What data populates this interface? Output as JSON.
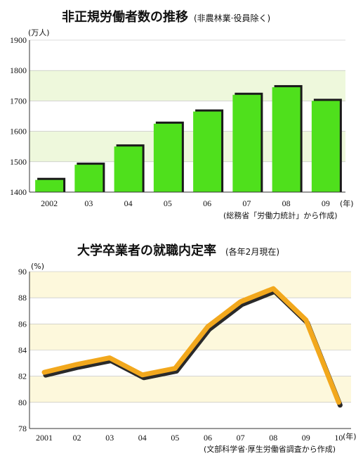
{
  "chart_data": [
    {
      "type": "bar",
      "title": "非正規労働者数の推移",
      "subtitle": "(非農林業·役員除く)",
      "unit": "(万人)",
      "categories": [
        "2002",
        "03",
        "04",
        "05",
        "06",
        "07",
        "08",
        "09"
      ],
      "x_unit": "(年)",
      "values": [
        1440,
        1490,
        1550,
        1625,
        1665,
        1720,
        1745,
        1700
      ],
      "ylim": [
        1400,
        1900
      ],
      "yticks": [
        1400,
        1500,
        1600,
        1700,
        1800,
        1900
      ],
      "source": "(総務省「労働力統計」から作成)",
      "colors": {
        "bar": "#4fe01c",
        "shadow": "#1a1a1a",
        "band": "#eef8dc"
      }
    },
    {
      "type": "line",
      "title": "大学卒業者の就職内定率",
      "subtitle": "(各年2月現在)",
      "unit": "(%)",
      "categories": [
        "2001",
        "02",
        "03",
        "04",
        "05",
        "06",
        "07",
        "08",
        "09",
        "10"
      ],
      "x_unit": "(年)",
      "values": [
        82.3,
        82.9,
        83.4,
        82.1,
        82.6,
        85.8,
        87.7,
        88.7,
        86.3,
        80.0
      ],
      "ylim": [
        78,
        90
      ],
      "yticks": [
        78,
        80,
        82,
        84,
        86,
        88,
        90
      ],
      "source": "(文部科学省·厚生労働省調査から作成)",
      "colors": {
        "line": "#f2a81d",
        "shadow": "#2a2a2a",
        "band": "#fdf8dc"
      }
    }
  ]
}
